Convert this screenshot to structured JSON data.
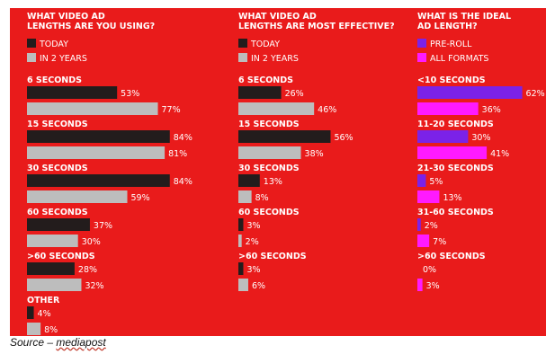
{
  "source": {
    "prefix": "Source – ",
    "name": "mediapost"
  },
  "colors": {
    "background": "#e91b1b",
    "today": "#231c1c",
    "in_2_years": "#bdbdbd",
    "pre_roll": "#7b22e8",
    "all_formats": "#ff1aff",
    "text": "#ffffff"
  },
  "chart_data": [
    {
      "type": "bar",
      "orientation": "horizontal",
      "title": "WHAT VIDEO AD LENGTHS ARE YOU USING?",
      "legend": [
        "TODAY",
        "IN 2 YEARS"
      ],
      "categories": [
        "6 SECONDS",
        "15 SECONDS",
        "30 SECONDS",
        "60 SECONDS",
        ">60 SECONDS",
        "OTHER"
      ],
      "series": [
        {
          "name": "TODAY",
          "values": [
            53,
            84,
            84,
            37,
            28,
            4
          ]
        },
        {
          "name": "IN 2 YEARS",
          "values": [
            77,
            81,
            59,
            30,
            32,
            8
          ]
        }
      ],
      "unit": "%"
    },
    {
      "type": "bar",
      "orientation": "horizontal",
      "title": "WHAT VIDEO AD LENGTHS ARE MOST EFFECTIVE?",
      "legend": [
        "TODAY",
        "IN 2 YEARS"
      ],
      "categories": [
        "6 SECONDS",
        "15 SECONDS",
        "30 SECONDS",
        "60 SECONDS",
        ">60 SECONDS"
      ],
      "series": [
        {
          "name": "TODAY",
          "values": [
            26,
            56,
            13,
            3,
            3
          ]
        },
        {
          "name": "IN 2 YEARS",
          "values": [
            46,
            38,
            8,
            2,
            6
          ]
        }
      ],
      "unit": "%"
    },
    {
      "type": "bar",
      "orientation": "horizontal",
      "title": "WHAT IS THE IDEAL AD LENGTH?",
      "legend": [
        "PRE-ROLL",
        "ALL FORMATS"
      ],
      "categories": [
        "<10 SECONDS",
        "11-20 SECONDS",
        "21-30 SECONDS",
        "31-60 SECONDS",
        ">60 SECONDS"
      ],
      "series": [
        {
          "name": "PRE-ROLL",
          "values": [
            62,
            30,
            5,
            2,
            0
          ]
        },
        {
          "name": "ALL FORMATS",
          "values": [
            36,
            41,
            13,
            7,
            3
          ]
        }
      ],
      "unit": "%"
    }
  ]
}
